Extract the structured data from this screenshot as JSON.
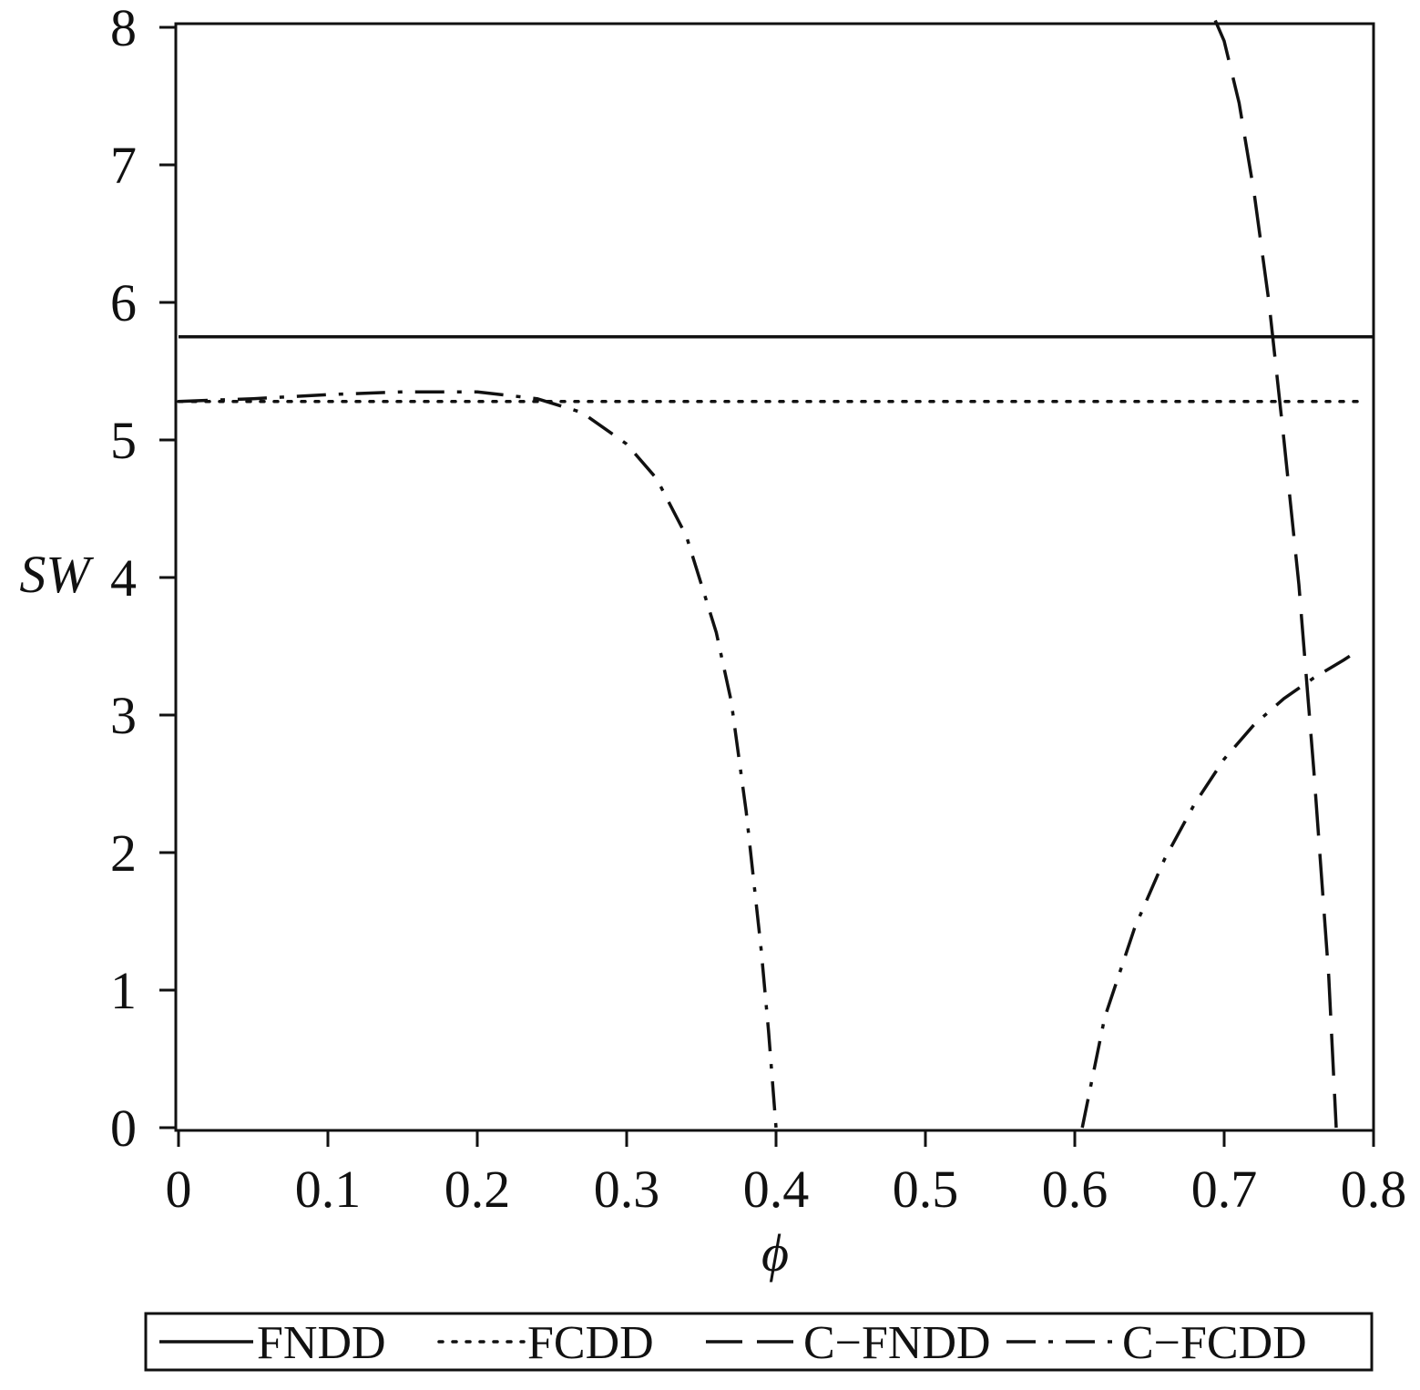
{
  "chart_data": {
    "type": "line",
    "xlabel": "ϕ",
    "ylabel": "SW",
    "xlim": [
      0,
      0.8
    ],
    "ylim": [
      0,
      8
    ],
    "x_ticks": [
      "0",
      "0.1",
      "0.2",
      "0.3",
      "0.4",
      "0.5",
      "0.6",
      "0.7",
      "0.8"
    ],
    "y_ticks": [
      "0",
      "1",
      "2",
      "3",
      "4",
      "5",
      "6",
      "7",
      "8"
    ],
    "grid": false,
    "legend_position": "bottom",
    "series": [
      {
        "name": "FNDD",
        "style": "solid",
        "segments": [
          [
            [
              0,
              5.75
            ],
            [
              0.8,
              5.75
            ]
          ]
        ]
      },
      {
        "name": "FCDD",
        "style": "dotted",
        "segments": [
          [
            [
              0,
              5.28
            ],
            [
              0.79,
              5.28
            ]
          ]
        ]
      },
      {
        "name": "C−FNDD",
        "style": "dashed",
        "segments": [
          [
            [
              0.694,
              8.05
            ],
            [
              0.7,
              7.9
            ],
            [
              0.71,
              7.45
            ],
            [
              0.72,
              6.8
            ],
            [
              0.73,
              6.0
            ],
            [
              0.74,
              5.0
            ],
            [
              0.75,
              3.95
            ],
            [
              0.76,
              2.6
            ],
            [
              0.77,
              1.1
            ],
            [
              0.775,
              0.0
            ]
          ]
        ]
      },
      {
        "name": "C−FCDD",
        "style": "dash-dot",
        "segments": [
          [
            [
              0,
              5.28
            ],
            [
              0.05,
              5.3
            ],
            [
              0.1,
              5.33
            ],
            [
              0.15,
              5.35
            ],
            [
              0.2,
              5.35
            ],
            [
              0.24,
              5.3
            ],
            [
              0.27,
              5.2
            ],
            [
              0.3,
              4.97
            ],
            [
              0.32,
              4.72
            ],
            [
              0.34,
              4.3
            ],
            [
              0.36,
              3.6
            ],
            [
              0.37,
              3.1
            ],
            [
              0.38,
              2.3
            ],
            [
              0.39,
              1.3
            ],
            [
              0.395,
              0.7
            ],
            [
              0.4,
              0.0
            ]
          ],
          [
            [
              0.605,
              0.0
            ],
            [
              0.62,
              0.8
            ],
            [
              0.64,
              1.45
            ],
            [
              0.66,
              1.95
            ],
            [
              0.68,
              2.35
            ],
            [
              0.7,
              2.68
            ],
            [
              0.72,
              2.93
            ],
            [
              0.74,
              3.12
            ],
            [
              0.76,
              3.27
            ],
            [
              0.78,
              3.4
            ],
            [
              0.79,
              3.47
            ]
          ]
        ]
      }
    ],
    "colors": {
      "axis": "#111111",
      "lines": "#111111"
    }
  }
}
